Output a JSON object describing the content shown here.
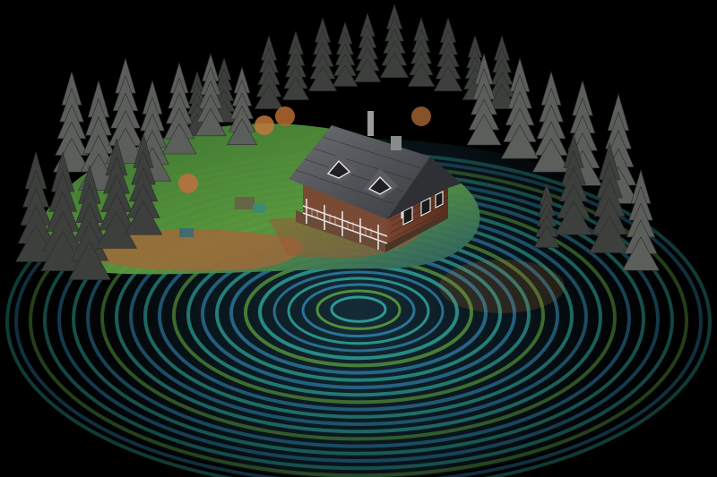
{
  "scene": {
    "subject": "cabin-with-ripples",
    "colors": {
      "background": "#000000",
      "ripple_blue": "#2f7fa6",
      "ripple_teal": "#2fa59a",
      "ripple_green": "#5a9a3e",
      "ripple_orange": "#c07a3a",
      "grass": "#4c8a3a",
      "soil": "#a8643a",
      "tree": "#5b5e5a",
      "tree_dark": "#3c3f3c",
      "roof": "#4f5155",
      "wall": "#6b3a2a",
      "trim": "#d8d8d8"
    }
  }
}
